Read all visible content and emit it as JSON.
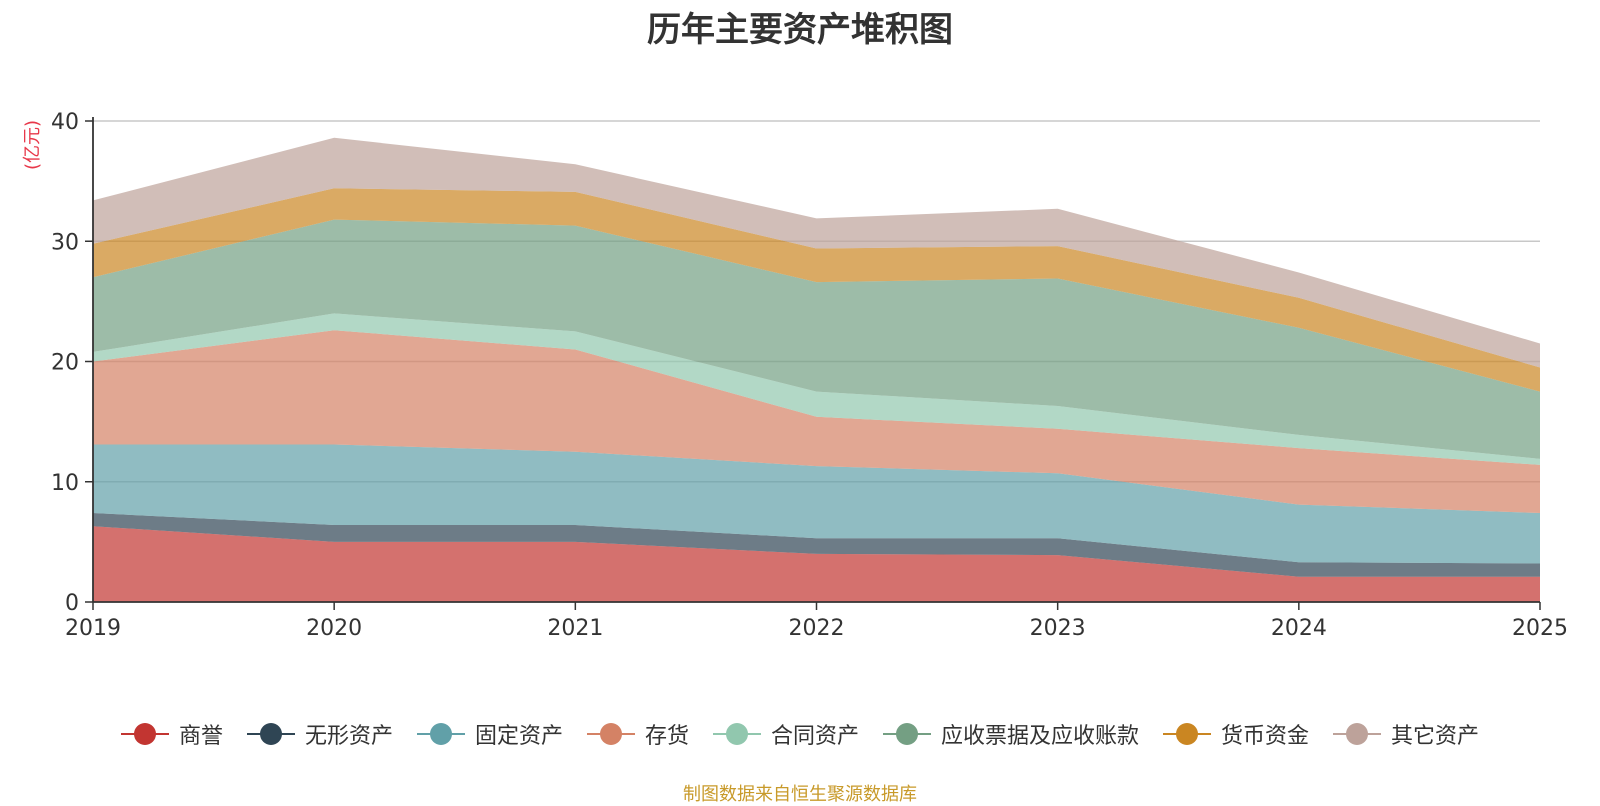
{
  "chart_data": {
    "type": "area",
    "stacked": true,
    "title": "历年主要资产堆积图",
    "unit": "(亿元)",
    "x": [
      "2019",
      "2020",
      "2021",
      "2022",
      "2023",
      "2024",
      "2025"
    ],
    "ylim": [
      0,
      40
    ],
    "yticks": [
      "0",
      "10",
      "20",
      "30",
      "40"
    ],
    "grid": true,
    "legend_position": "bottom",
    "series": [
      {
        "name": "商誉",
        "color": "#c23531",
        "values": [
          6.3,
          5.0,
          5.0,
          4.0,
          3.9,
          2.1,
          2.1
        ]
      },
      {
        "name": "无形资产",
        "color": "#2f4554",
        "values": [
          1.1,
          1.4,
          1.4,
          1.3,
          1.4,
          1.2,
          1.1
        ]
      },
      {
        "name": "固定资产",
        "color": "#61a0a8",
        "values": [
          5.7,
          6.7,
          6.1,
          6.0,
          5.4,
          4.8,
          4.2
        ]
      },
      {
        "name": "存货",
        "color": "#d48265",
        "values": [
          6.9,
          9.5,
          8.5,
          4.1,
          3.7,
          4.7,
          4.0
        ]
      },
      {
        "name": "合同资产",
        "color": "#91c7ae",
        "values": [
          0.8,
          1.4,
          1.5,
          2.1,
          1.9,
          1.1,
          0.5
        ]
      },
      {
        "name": "应收票据及应收账款",
        "color": "#749f83",
        "values": [
          6.2,
          7.8,
          8.8,
          9.1,
          10.6,
          8.9,
          5.6
        ]
      },
      {
        "name": "货币资金",
        "color": "#ca8622",
        "values": [
          2.8,
          2.6,
          2.8,
          2.8,
          2.7,
          2.5,
          2.0
        ]
      },
      {
        "name": "其它资产",
        "color": "#bda29a",
        "values": [
          3.6,
          4.2,
          2.3,
          2.5,
          3.1,
          2.1,
          2.0
        ]
      }
    ]
  },
  "source_note": "制图数据来自恒生聚源数据库"
}
